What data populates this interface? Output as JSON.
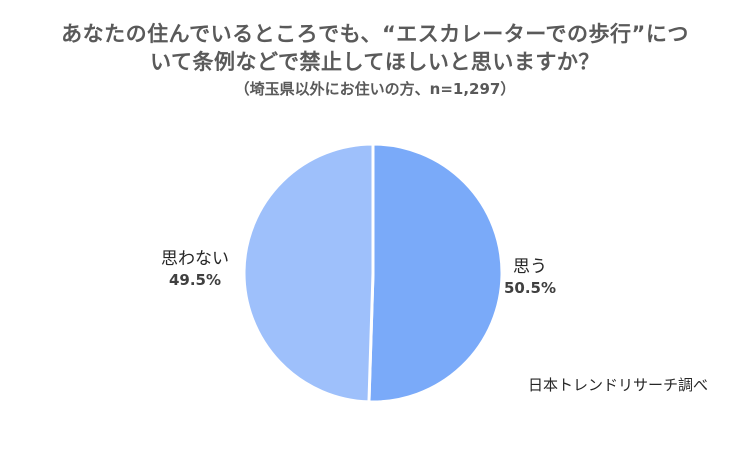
{
  "chart_data": {
    "type": "pie",
    "title_lines": [
      "あなたの住んでいるところでも、“エスカレーターでの歩行”につ",
      "いて条例などで禁止してほしいと思いますか？"
    ],
    "subtitle": "（埼玉県以外にお住いの方、n=1,297）",
    "slices": [
      {
        "name": "思う",
        "value": 50.5,
        "label": "50.5%",
        "color": "#7aaaf9"
      },
      {
        "name": "思わない",
        "value": 49.5,
        "label": "49.5%",
        "color": "#9ec0fb"
      }
    ],
    "start_angle_deg": 0,
    "direction": "clockwise",
    "slice_border_color": "#ffffff"
  },
  "source_note": "日本トレンドリサーチ調べ"
}
